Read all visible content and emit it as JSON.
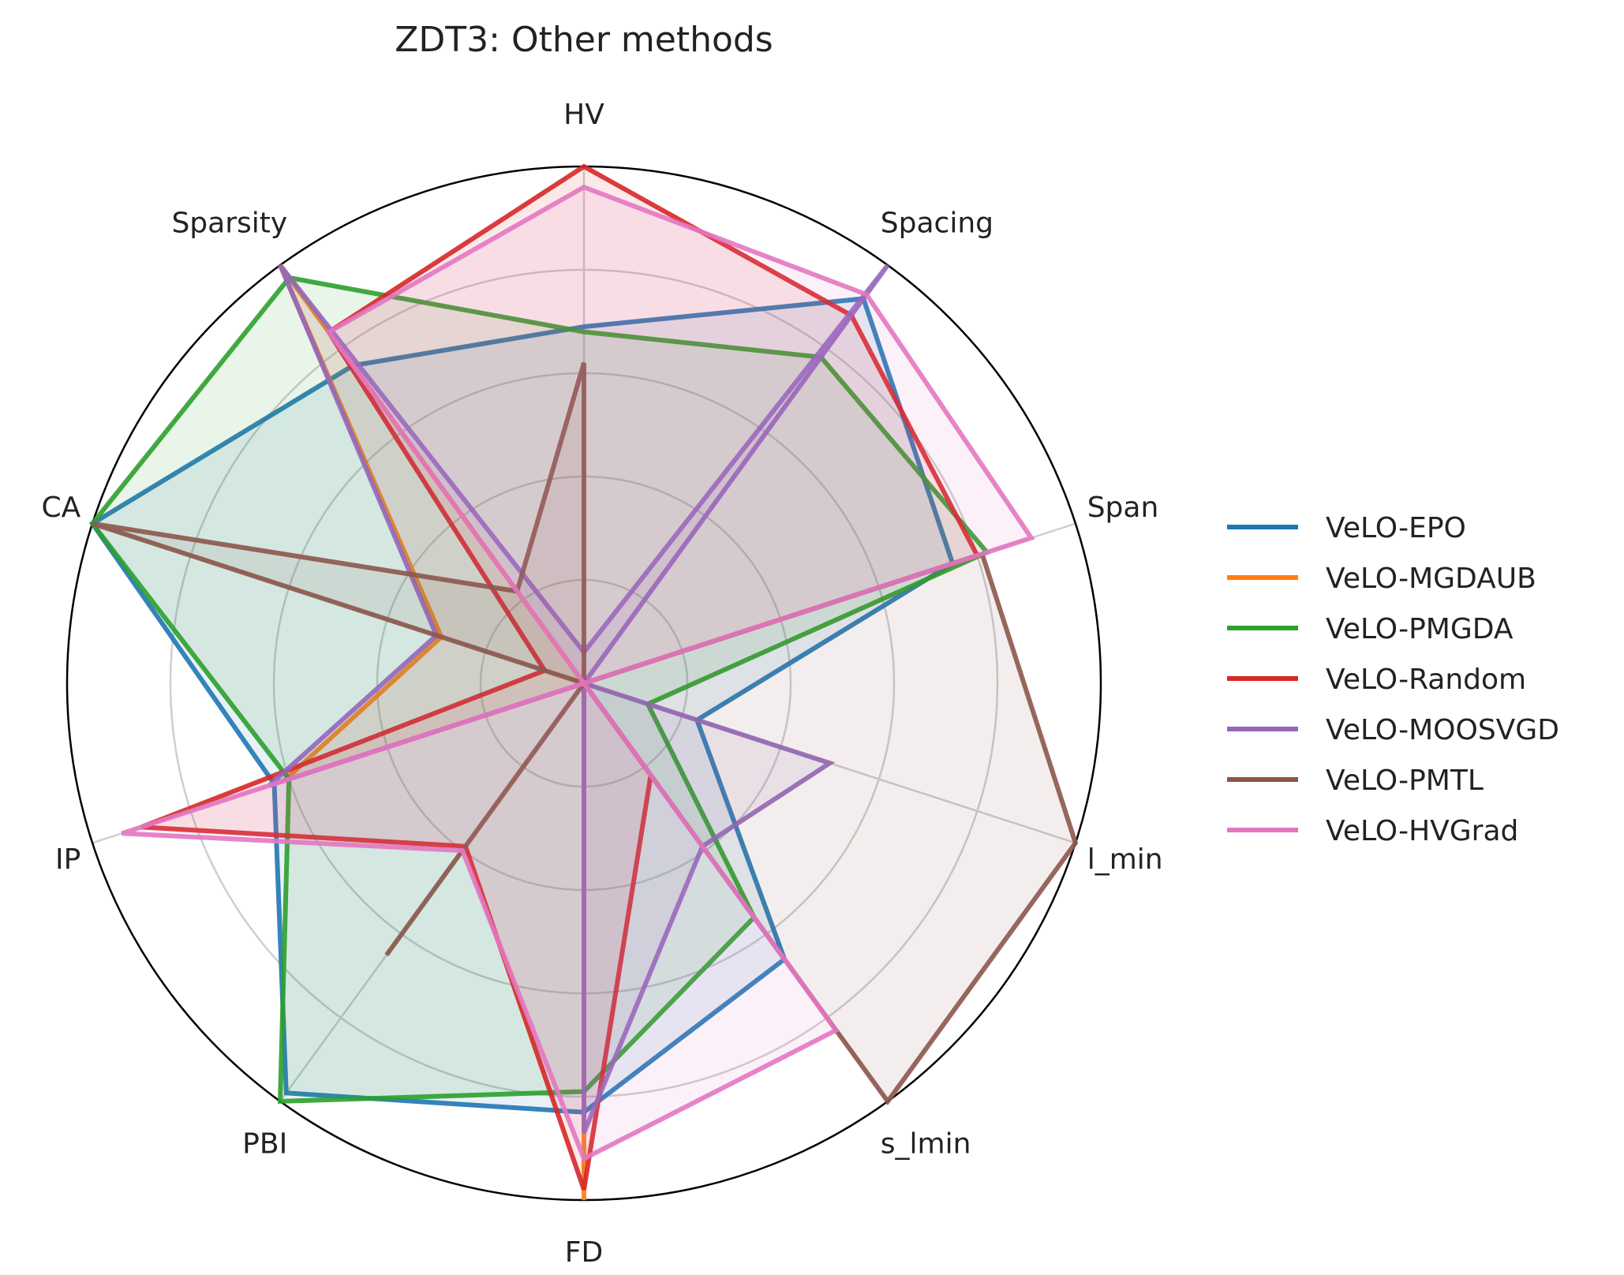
{
  "chart_data": {
    "type": "radar",
    "title": "ZDT3: Other methods",
    "axes": [
      "HV",
      "Spacing",
      "Span",
      "l_min",
      "s_lmin",
      "FD",
      "PBI",
      "IP",
      "CA",
      "Sparsity"
    ],
    "rlim": [
      0,
      1
    ],
    "grid": true,
    "legend_placement": "right",
    "series": [
      {
        "name": "VeLO-EPO",
        "color": "#1f77b4",
        "values": [
          0.69,
          0.92,
          0.75,
          0.23,
          0.66,
          0.83,
          0.98,
          0.63,
          1.0,
          0.76
        ]
      },
      {
        "name": "VeLO-MGDAUB",
        "color": "#ff7f0e",
        "values": [
          0.0,
          0.0,
          0.0,
          0.0,
          0.0,
          1.0,
          0.0,
          0.61,
          0.29,
          1.0
        ]
      },
      {
        "name": "VeLO-PMGDA",
        "color": "#2ca02c",
        "values": [
          0.68,
          0.78,
          0.82,
          0.13,
          0.56,
          0.79,
          1.0,
          0.6,
          1.0,
          0.97
        ]
      },
      {
        "name": "VeLO-Random",
        "color": "#d62728",
        "values": [
          1.0,
          0.88,
          0.8,
          0.0,
          0.22,
          0.98,
          0.39,
          0.9,
          0.08,
          0.84
        ]
      },
      {
        "name": "VeLO-MOOSVGD",
        "color": "#9467bd",
        "values": [
          0.06,
          1.0,
          0.0,
          0.5,
          0.39,
          0.87,
          0.0,
          0.64,
          0.3,
          1.0
        ]
      },
      {
        "name": "VeLO-PMTL",
        "color": "#8c564b",
        "values": [
          0.62,
          0.0,
          0.81,
          1.0,
          1.0,
          0.0,
          0.65,
          0.0,
          1.0,
          0.22
        ]
      },
      {
        "name": "VeLO-HVGrad",
        "color": "#e377c2",
        "values": [
          0.96,
          0.93,
          0.91,
          0.0,
          0.83,
          0.92,
          0.4,
          0.94,
          0.0,
          0.84
        ]
      }
    ]
  }
}
